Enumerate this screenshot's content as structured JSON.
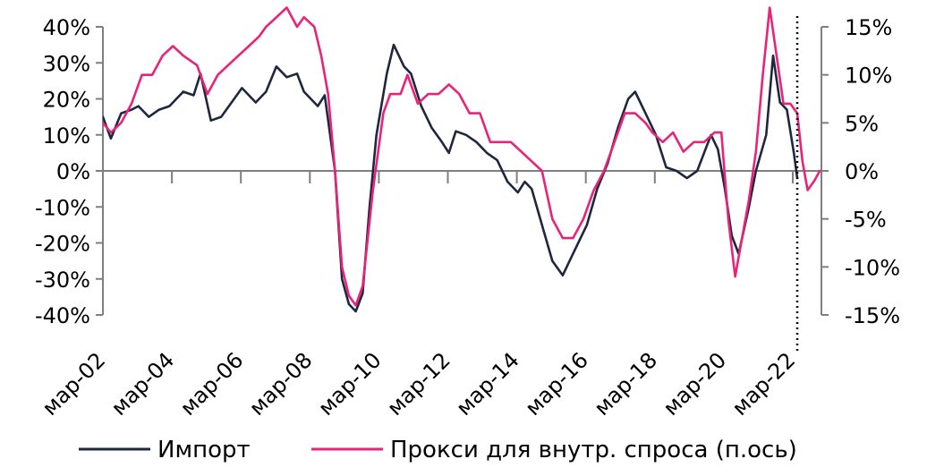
{
  "chart_data": {
    "type": "line",
    "title": "",
    "left_axis": {
      "ticks": [
        "40%",
        "30%",
        "20%",
        "10%",
        "0%",
        "-10%",
        "-20%",
        "-30%",
        "-40%"
      ],
      "ylim": [
        -40,
        40
      ]
    },
    "right_axis": {
      "ticks": [
        "15%",
        "10%",
        "5%",
        "0%",
        "-5%",
        "-10%",
        "-15%"
      ],
      "ylim": [
        -15,
        15
      ]
    },
    "x_tick_labels": [
      "мар-02",
      "мар-04",
      "мар-06",
      "мар-08",
      "мар-10",
      "мар-12",
      "мар-14",
      "мар-16",
      "мар-18",
      "мар-20",
      "мар-22"
    ],
    "x_tick_positions": [
      2002.17,
      2004.17,
      2006.17,
      2008.17,
      2010.17,
      2012.17,
      2014.17,
      2016.17,
      2018.17,
      2020.17,
      2022.17
    ],
    "xlim": [
      2002.17,
      2023.0
    ],
    "vline_x": 2022.3,
    "legend_position": "bottom",
    "series": [
      {
        "name": "Импорт",
        "axis": "left",
        "color": "#1f2740",
        "points": [
          [
            2002.17,
            15
          ],
          [
            2002.4,
            9
          ],
          [
            2002.7,
            16
          ],
          [
            2003.0,
            17
          ],
          [
            2003.2,
            18
          ],
          [
            2003.5,
            15
          ],
          [
            2003.8,
            17
          ],
          [
            2004.1,
            18
          ],
          [
            2004.5,
            22
          ],
          [
            2004.8,
            21
          ],
          [
            2005.0,
            27
          ],
          [
            2005.3,
            14
          ],
          [
            2005.6,
            15
          ],
          [
            2005.9,
            19
          ],
          [
            2006.2,
            23
          ],
          [
            2006.6,
            19
          ],
          [
            2006.9,
            22
          ],
          [
            2007.2,
            29
          ],
          [
            2007.5,
            26
          ],
          [
            2007.8,
            27
          ],
          [
            2008.0,
            22
          ],
          [
            2008.4,
            18
          ],
          [
            2008.6,
            21
          ],
          [
            2008.9,
            0
          ],
          [
            2009.1,
            -30
          ],
          [
            2009.3,
            -37
          ],
          [
            2009.5,
            -39
          ],
          [
            2009.7,
            -34
          ],
          [
            2009.9,
            -10
          ],
          [
            2010.1,
            10
          ],
          [
            2010.4,
            27
          ],
          [
            2010.6,
            35
          ],
          [
            2010.9,
            29
          ],
          [
            2011.1,
            27
          ],
          [
            2011.4,
            18
          ],
          [
            2011.7,
            12
          ],
          [
            2012.0,
            8
          ],
          [
            2012.2,
            5
          ],
          [
            2012.4,
            11
          ],
          [
            2012.7,
            10
          ],
          [
            2013.0,
            8
          ],
          [
            2013.3,
            5
          ],
          [
            2013.6,
            3
          ],
          [
            2013.9,
            -3
          ],
          [
            2014.2,
            -6
          ],
          [
            2014.4,
            -3
          ],
          [
            2014.6,
            -5
          ],
          [
            2014.9,
            -15
          ],
          [
            2015.2,
            -25
          ],
          [
            2015.5,
            -29
          ],
          [
            2015.8,
            -23
          ],
          [
            2016.2,
            -15
          ],
          [
            2016.5,
            -5
          ],
          [
            2016.8,
            2
          ],
          [
            2017.1,
            12
          ],
          [
            2017.4,
            20
          ],
          [
            2017.6,
            22
          ],
          [
            2017.9,
            16
          ],
          [
            2018.2,
            10
          ],
          [
            2018.5,
            1
          ],
          [
            2018.8,
            0
          ],
          [
            2019.1,
            -2
          ],
          [
            2019.4,
            0
          ],
          [
            2019.6,
            5
          ],
          [
            2019.8,
            10
          ],
          [
            2020.0,
            6
          ],
          [
            2020.2,
            -5
          ],
          [
            2020.4,
            -18
          ],
          [
            2020.6,
            -23
          ],
          [
            2020.9,
            -10
          ],
          [
            2021.1,
            0
          ],
          [
            2021.4,
            10
          ],
          [
            2021.6,
            32
          ],
          [
            2021.8,
            19
          ],
          [
            2022.0,
            17
          ],
          [
            2022.2,
            5
          ],
          [
            2022.3,
            -2
          ]
        ]
      },
      {
        "name": "Прокси для внутр. спроса (п.ось)",
        "axis": "right",
        "color": "#e8237a",
        "points": [
          [
            2002.17,
            5
          ],
          [
            2002.4,
            4
          ],
          [
            2002.7,
            5
          ],
          [
            2003.0,
            7
          ],
          [
            2003.3,
            10
          ],
          [
            2003.6,
            10
          ],
          [
            2003.9,
            12
          ],
          [
            2004.2,
            13
          ],
          [
            2004.5,
            12
          ],
          [
            2004.9,
            11
          ],
          [
            2005.2,
            8
          ],
          [
            2005.5,
            10
          ],
          [
            2005.8,
            11
          ],
          [
            2006.1,
            12
          ],
          [
            2006.4,
            13
          ],
          [
            2006.7,
            14
          ],
          [
            2006.9,
            15
          ],
          [
            2007.2,
            16
          ],
          [
            2007.5,
            17
          ],
          [
            2007.8,
            15
          ],
          [
            2008.0,
            16
          ],
          [
            2008.3,
            15
          ],
          [
            2008.5,
            12
          ],
          [
            2008.7,
            8
          ],
          [
            2008.9,
            0
          ],
          [
            2009.1,
            -10
          ],
          [
            2009.3,
            -13
          ],
          [
            2009.5,
            -14
          ],
          [
            2009.7,
            -12
          ],
          [
            2010.0,
            -2
          ],
          [
            2010.3,
            6
          ],
          [
            2010.5,
            8
          ],
          [
            2010.8,
            8
          ],
          [
            2011.0,
            10
          ],
          [
            2011.3,
            7
          ],
          [
            2011.6,
            8
          ],
          [
            2011.9,
            8
          ],
          [
            2012.2,
            9
          ],
          [
            2012.5,
            8
          ],
          [
            2012.8,
            6
          ],
          [
            2013.1,
            6
          ],
          [
            2013.4,
            3
          ],
          [
            2013.7,
            3
          ],
          [
            2014.0,
            3
          ],
          [
            2014.3,
            2
          ],
          [
            2014.6,
            1
          ],
          [
            2014.9,
            0
          ],
          [
            2015.2,
            -5
          ],
          [
            2015.5,
            -7
          ],
          [
            2015.8,
            -7
          ],
          [
            2016.1,
            -5
          ],
          [
            2016.4,
            -2
          ],
          [
            2016.7,
            0
          ],
          [
            2017.0,
            3
          ],
          [
            2017.3,
            6
          ],
          [
            2017.6,
            6
          ],
          [
            2017.9,
            5
          ],
          [
            2018.1,
            4
          ],
          [
            2018.4,
            3
          ],
          [
            2018.7,
            4
          ],
          [
            2019.0,
            2
          ],
          [
            2019.3,
            3
          ],
          [
            2019.6,
            3
          ],
          [
            2019.9,
            4
          ],
          [
            2020.1,
            4
          ],
          [
            2020.3,
            -5
          ],
          [
            2020.5,
            -11
          ],
          [
            2020.7,
            -7
          ],
          [
            2020.9,
            -3
          ],
          [
            2021.1,
            2
          ],
          [
            2021.3,
            10
          ],
          [
            2021.5,
            17
          ],
          [
            2021.7,
            12
          ],
          [
            2021.9,
            7
          ],
          [
            2022.1,
            7
          ],
          [
            2022.3,
            6
          ],
          [
            2022.45,
            1
          ],
          [
            2022.6,
            -2
          ],
          [
            2022.8,
            -1
          ],
          [
            2022.95,
            0
          ]
        ]
      }
    ]
  },
  "legend": {
    "items": [
      {
        "label": "Импорт",
        "color": "#1f2740"
      },
      {
        "label": "Прокси для внутр. спроса (п.ось)",
        "color": "#e8237a"
      }
    ]
  }
}
